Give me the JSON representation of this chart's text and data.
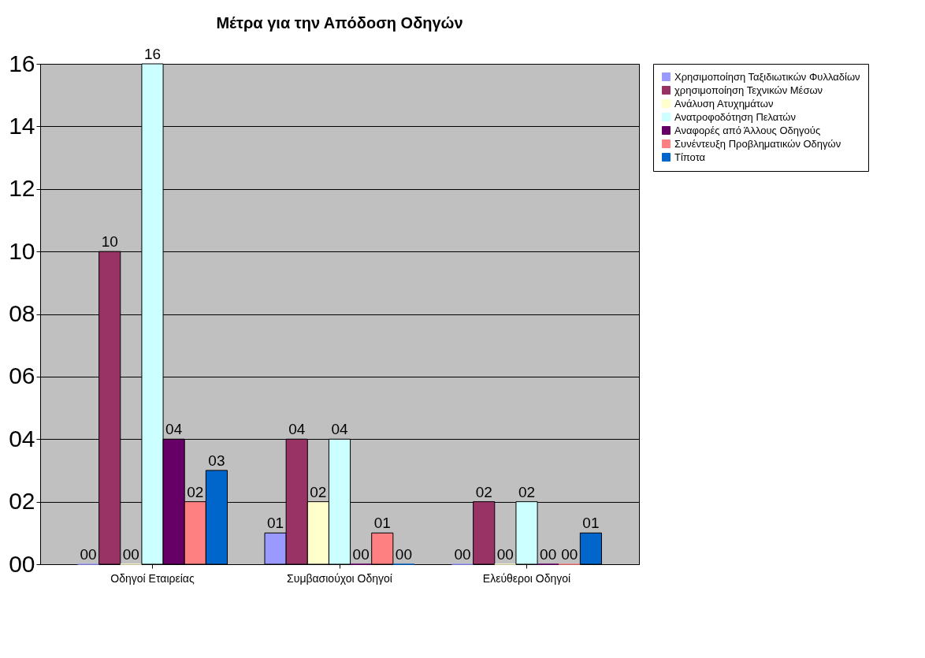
{
  "chart_data": {
    "type": "bar",
    "title": "Μέτρα για την Απόδοση Οδηγών",
    "categories": [
      "Οδηγοί Εταιρείας",
      "Συμβασιούχοι Οδηγοί",
      "Ελεύθεροι Οδηγοί"
    ],
    "series": [
      {
        "name": "Χρησιμοποίηση Ταξιδιωτικών Φυλλαδίων",
        "color": "#9999ff",
        "values": [
          0,
          1,
          0
        ],
        "value_labels": [
          "00",
          "01",
          "00"
        ]
      },
      {
        "name": "χρησιμοποίηση Τεχνικών Μέσων",
        "color": "#993366",
        "values": [
          10,
          4,
          2
        ],
        "value_labels": [
          "10",
          "04",
          "02"
        ]
      },
      {
        "name": "Ανάλυση Ατυχημάτων",
        "color": "#ffffcc",
        "values": [
          0,
          2,
          0
        ],
        "value_labels": [
          "00",
          "02",
          "00"
        ]
      },
      {
        "name": "Ανατροφοδότηση Πελατών",
        "color": "#ccffff",
        "values": [
          16,
          4,
          2
        ],
        "value_labels": [
          "16",
          "04",
          "02"
        ]
      },
      {
        "name": "Αναφορές από Άλλους Οδηγούς",
        "color": "#660066",
        "values": [
          4,
          0,
          0
        ],
        "value_labels": [
          "04",
          "00",
          "00"
        ]
      },
      {
        "name": "Συνέντευξη Προβληματικών Οδηγών",
        "color": "#ff8080",
        "values": [
          2,
          1,
          0
        ],
        "value_labels": [
          "02",
          "01",
          "00"
        ]
      },
      {
        "name": "Τίποτα",
        "color": "#0066cc",
        "values": [
          3,
          0,
          1
        ],
        "value_labels": [
          "03",
          "00",
          "01"
        ]
      }
    ],
    "ylim": [
      0,
      16
    ],
    "yticks": [
      {
        "value": 0,
        "label": "00"
      },
      {
        "value": 2,
        "label": "02"
      },
      {
        "value": 4,
        "label": "04"
      },
      {
        "value": 6,
        "label": "06"
      },
      {
        "value": 8,
        "label": "08"
      },
      {
        "value": 10,
        "label": "10"
      },
      {
        "value": 12,
        "label": "12"
      },
      {
        "value": 14,
        "label": "14"
      },
      {
        "value": 16,
        "label": "16"
      }
    ],
    "grid": "y",
    "legend": "right"
  }
}
